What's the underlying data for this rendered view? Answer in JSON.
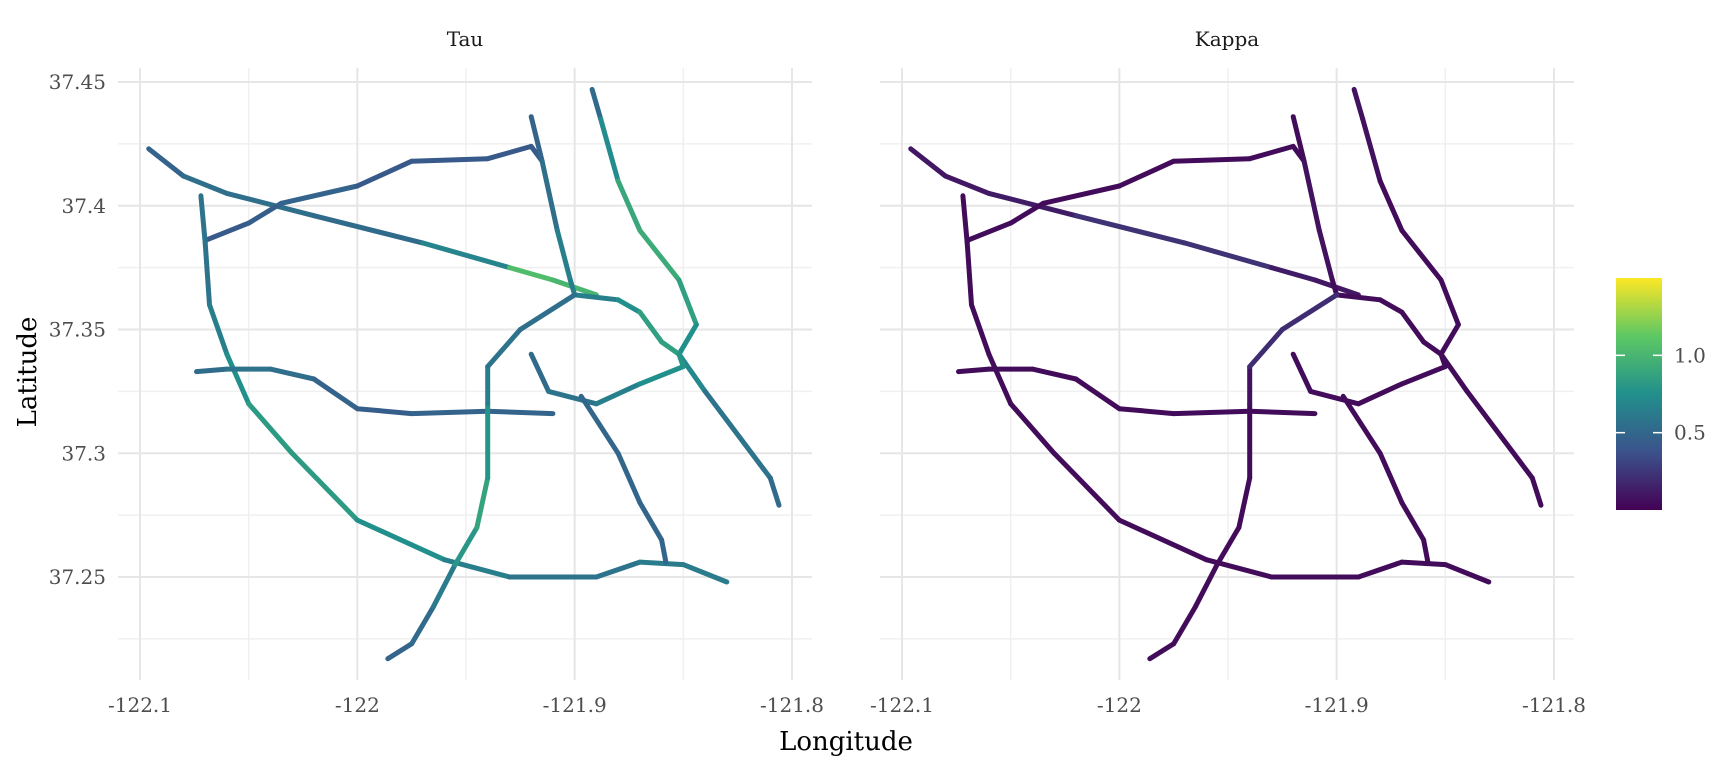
{
  "chart_data": {
    "type": "line",
    "xlabel": "Longitude",
    "ylabel": "Latitude",
    "xlim": [
      -122.1,
      -121.8
    ],
    "ylim": [
      37.21,
      37.46
    ],
    "x_ticks": [
      -122.1,
      -122.0,
      -121.9,
      -121.8
    ],
    "x_tick_labels": [
      "-122.1",
      "-122",
      "-121.9",
      "-121.8"
    ],
    "y_ticks": [
      37.25,
      37.3,
      37.35,
      37.4,
      37.45
    ],
    "y_tick_labels": [
      "37.25",
      "37.3",
      "37.35",
      "37.4",
      "37.45"
    ],
    "grid": true,
    "legend": {
      "placement": "right",
      "type": "colorbar",
      "palette": [
        "#440154",
        "#3b528b",
        "#21908c",
        "#5dc863",
        "#fde725"
      ],
      "range": [
        0,
        1.5
      ],
      "tick_values": [
        0.5,
        1.0
      ],
      "tick_labels": [
        "0.5",
        "1.0"
      ]
    },
    "panels": [
      {
        "label": "Tau",
        "roads": [
          {
            "points": [
              [
                -122.096,
                37.423
              ],
              [
                -122.08,
                37.412
              ],
              [
                -122.06,
                37.405
              ],
              [
                -122.02,
                37.396
              ],
              [
                -121.97,
                37.385
              ],
              [
                -121.93,
                37.375
              ],
              [
                -121.91,
                37.37
              ],
              [
                -121.89,
                37.364
              ]
            ],
            "values": [
              0.45,
              0.5,
              0.6,
              0.5,
              0.55,
              0.8,
              1.3,
              0.7
            ]
          },
          {
            "points": [
              [
                -122.07,
                37.386
              ],
              [
                -122.05,
                37.393
              ],
              [
                -122.035,
                37.401
              ],
              [
                -122.0,
                37.408
              ],
              [
                -121.975,
                37.418
              ],
              [
                -121.94,
                37.419
              ],
              [
                -121.92,
                37.424
              ],
              [
                -121.915,
                37.418
              ]
            ],
            "values": [
              0.45,
              0.4,
              0.5,
              0.45,
              0.4,
              0.45,
              0.4,
              0.45
            ]
          },
          {
            "points": [
              [
                -121.92,
                37.436
              ],
              [
                -121.915,
                37.418
              ],
              [
                -121.908,
                37.39
              ],
              [
                -121.902,
                37.37
              ],
              [
                -121.9,
                37.364
              ]
            ],
            "values": [
              0.45,
              0.5,
              0.6,
              0.7,
              0.6
            ]
          },
          {
            "points": [
              [
                -121.892,
                37.447
              ],
              [
                -121.888,
                37.435
              ],
              [
                -121.88,
                37.41
              ],
              [
                -121.87,
                37.39
              ],
              [
                -121.852,
                37.37
              ],
              [
                -121.844,
                37.352
              ],
              [
                -121.852,
                37.34
              ]
            ],
            "values": [
              0.45,
              0.6,
              0.85,
              0.95,
              0.9,
              0.8,
              0.7
            ]
          },
          {
            "points": [
              [
                -121.9,
                37.364
              ],
              [
                -121.88,
                37.362
              ],
              [
                -121.87,
                37.357
              ],
              [
                -121.86,
                37.345
              ],
              [
                -121.852,
                37.34
              ],
              [
                -121.84,
                37.325
              ],
              [
                -121.81,
                37.29
              ],
              [
                -121.806,
                37.279
              ]
            ],
            "values": [
              0.6,
              0.7,
              0.8,
              0.9,
              0.8,
              0.6,
              0.55,
              0.5
            ]
          },
          {
            "points": [
              [
                -122.072,
                37.404
              ],
              [
                -122.07,
                37.385
              ],
              [
                -122.068,
                37.36
              ],
              [
                -122.06,
                37.34
              ],
              [
                -122.05,
                37.32
              ],
              [
                -122.03,
                37.3
              ],
              [
                -122.0,
                37.273
              ],
              [
                -121.96,
                37.257
              ],
              [
                -121.93,
                37.25
              ],
              [
                -121.89,
                37.25
              ],
              [
                -121.87,
                37.256
              ],
              [
                -121.85,
                37.255
              ],
              [
                -121.83,
                37.248
              ]
            ],
            "values": [
              0.6,
              0.55,
              0.6,
              0.7,
              0.8,
              0.85,
              0.8,
              0.7,
              0.6,
              0.55,
              0.6,
              0.65,
              0.6
            ]
          },
          {
            "points": [
              [
                -122.074,
                37.333
              ],
              [
                -122.06,
                37.334
              ],
              [
                -122.04,
                37.334
              ],
              [
                -122.02,
                37.33
              ],
              [
                -122.0,
                37.318
              ],
              [
                -121.975,
                37.316
              ],
              [
                -121.94,
                37.317
              ],
              [
                -121.91,
                37.316
              ]
            ],
            "values": [
              0.5,
              0.55,
              0.6,
              0.5,
              0.45,
              0.45,
              0.5,
              0.45
            ]
          },
          {
            "points": [
              [
                -121.986,
                37.217
              ],
              [
                -121.975,
                37.223
              ],
              [
                -121.965,
                37.238
              ],
              [
                -121.955,
                37.255
              ],
              [
                -121.945,
                37.27
              ],
              [
                -121.94,
                37.29
              ],
              [
                -121.94,
                37.32
              ],
              [
                -121.94,
                37.335
              ],
              [
                -121.925,
                37.35
              ],
              [
                -121.9,
                37.364
              ]
            ],
            "values": [
              0.45,
              0.5,
              0.55,
              0.7,
              0.9,
              0.85,
              0.7,
              0.6,
              0.55,
              0.55
            ]
          },
          {
            "points": [
              [
                -121.92,
                37.34
              ],
              [
                -121.912,
                37.325
              ],
              [
                -121.89,
                37.32
              ],
              [
                -121.87,
                37.328
              ],
              [
                -121.85,
                37.335
              ],
              [
                -121.852,
                37.34
              ]
            ],
            "values": [
              0.5,
              0.55,
              0.6,
              0.7,
              0.8,
              0.75
            ]
          },
          {
            "points": [
              [
                -121.897,
                37.323
              ],
              [
                -121.88,
                37.3
              ],
              [
                -121.87,
                37.28
              ],
              [
                -121.86,
                37.265
              ],
              [
                -121.858,
                37.256
              ]
            ],
            "values": [
              0.5,
              0.5,
              0.5,
              0.5,
              0.5
            ]
          }
        ]
      },
      {
        "label": "Kappa",
        "roads": [
          {
            "points": [
              [
                -122.096,
                37.423
              ],
              [
                -122.08,
                37.412
              ],
              [
                -122.06,
                37.405
              ],
              [
                -122.02,
                37.396
              ],
              [
                -121.97,
                37.385
              ],
              [
                -121.93,
                37.375
              ],
              [
                -121.91,
                37.37
              ],
              [
                -121.89,
                37.364
              ]
            ],
            "values": [
              0.1,
              0.1,
              0.1,
              0.15,
              0.3,
              0.15,
              0.1,
              0.1
            ]
          },
          {
            "points": [
              [
                -122.07,
                37.386
              ],
              [
                -122.05,
                37.393
              ],
              [
                -122.035,
                37.401
              ],
              [
                -122.0,
                37.408
              ],
              [
                -121.975,
                37.418
              ],
              [
                -121.94,
                37.419
              ],
              [
                -121.92,
                37.424
              ],
              [
                -121.915,
                37.418
              ]
            ],
            "values": [
              0.05,
              0.05,
              0.05,
              0.05,
              0.05,
              0.05,
              0.05,
              0.05
            ]
          },
          {
            "points": [
              [
                -121.92,
                37.436
              ],
              [
                -121.915,
                37.418
              ],
              [
                -121.908,
                37.39
              ],
              [
                -121.902,
                37.37
              ],
              [
                -121.9,
                37.364
              ]
            ],
            "values": [
              0.05,
              0.05,
              0.1,
              0.05,
              0.05
            ]
          },
          {
            "points": [
              [
                -121.892,
                37.447
              ],
              [
                -121.888,
                37.435
              ],
              [
                -121.88,
                37.41
              ],
              [
                -121.87,
                37.39
              ],
              [
                -121.852,
                37.37
              ],
              [
                -121.844,
                37.352
              ],
              [
                -121.852,
                37.34
              ]
            ],
            "values": [
              0.05,
              0.1,
              0.05,
              0.05,
              0.05,
              0.05,
              0.05
            ]
          },
          {
            "points": [
              [
                -121.9,
                37.364
              ],
              [
                -121.88,
                37.362
              ],
              [
                -121.87,
                37.357
              ],
              [
                -121.86,
                37.345
              ],
              [
                -121.852,
                37.34
              ],
              [
                -121.84,
                37.325
              ],
              [
                -121.81,
                37.29
              ],
              [
                -121.806,
                37.279
              ]
            ],
            "values": [
              0.05,
              0.05,
              0.05,
              0.05,
              0.05,
              0.05,
              0.05,
              0.05
            ]
          },
          {
            "points": [
              [
                -122.072,
                37.404
              ],
              [
                -122.07,
                37.385
              ],
              [
                -122.068,
                37.36
              ],
              [
                -122.06,
                37.34
              ],
              [
                -122.05,
                37.32
              ],
              [
                -122.03,
                37.3
              ],
              [
                -122.0,
                37.273
              ],
              [
                -121.96,
                37.257
              ],
              [
                -121.93,
                37.25
              ],
              [
                -121.89,
                37.25
              ],
              [
                -121.87,
                37.256
              ],
              [
                -121.85,
                37.255
              ],
              [
                -121.83,
                37.248
              ]
            ],
            "values": [
              0.05,
              0.05,
              0.05,
              0.05,
              0.05,
              0.05,
              0.05,
              0.05,
              0.05,
              0.05,
              0.05,
              0.05,
              0.05
            ]
          },
          {
            "points": [
              [
                -122.074,
                37.333
              ],
              [
                -122.06,
                37.334
              ],
              [
                -122.04,
                37.334
              ],
              [
                -122.02,
                37.33
              ],
              [
                -122.0,
                37.318
              ],
              [
                -121.975,
                37.316
              ],
              [
                -121.94,
                37.317
              ],
              [
                -121.91,
                37.316
              ]
            ],
            "values": [
              0.05,
              0.05,
              0.05,
              0.05,
              0.05,
              0.05,
              0.05,
              0.05
            ]
          },
          {
            "points": [
              [
                -121.986,
                37.217
              ],
              [
                -121.975,
                37.223
              ],
              [
                -121.965,
                37.238
              ],
              [
                -121.955,
                37.255
              ],
              [
                -121.945,
                37.27
              ],
              [
                -121.94,
                37.29
              ],
              [
                -121.94,
                37.32
              ],
              [
                -121.94,
                37.335
              ],
              [
                -121.925,
                37.35
              ],
              [
                -121.9,
                37.364
              ]
            ],
            "values": [
              0.05,
              0.05,
              0.05,
              0.05,
              0.05,
              0.05,
              0.05,
              0.1,
              0.3,
              0.1
            ]
          },
          {
            "points": [
              [
                -121.92,
                37.34
              ],
              [
                -121.912,
                37.325
              ],
              [
                -121.89,
                37.32
              ],
              [
                -121.87,
                37.328
              ],
              [
                -121.85,
                37.335
              ],
              [
                -121.852,
                37.34
              ]
            ],
            "values": [
              0.05,
              0.05,
              0.05,
              0.05,
              0.05,
              0.05
            ]
          },
          {
            "points": [
              [
                -121.897,
                37.323
              ],
              [
                -121.88,
                37.3
              ],
              [
                -121.87,
                37.28
              ],
              [
                -121.86,
                37.265
              ],
              [
                -121.858,
                37.256
              ]
            ],
            "values": [
              0.05,
              0.05,
              0.05,
              0.05,
              0.05
            ]
          }
        ]
      }
    ]
  }
}
